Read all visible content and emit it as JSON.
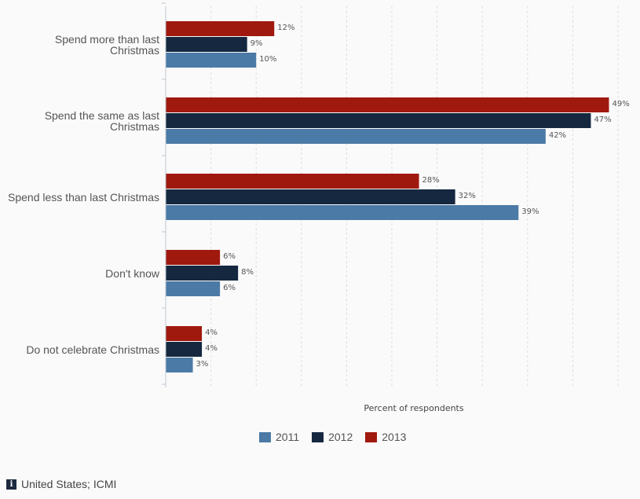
{
  "chart_data": {
    "type": "bar",
    "orientation": "horizontal",
    "categories": [
      [
        "Spend more than last",
        "Christmas"
      ],
      [
        "Spend the same as last",
        "Christmas"
      ],
      [
        "Spend less than last Christmas"
      ],
      [
        "Don't know"
      ],
      [
        "Do not celebrate Christmas"
      ]
    ],
    "series": [
      {
        "name": "2013",
        "color": "#a0190e",
        "values": [
          12,
          49,
          28,
          6,
          4
        ],
        "labels": [
          "12%",
          "49%",
          "28%",
          "6%",
          "4%"
        ]
      },
      {
        "name": "2012",
        "color": "#152840",
        "values": [
          9,
          47,
          32,
          8,
          4
        ],
        "labels": [
          "9%",
          "47%",
          "32%",
          "8%",
          "4%"
        ]
      },
      {
        "name": "2011",
        "color": "#4b7aa6",
        "values": [
          10,
          42,
          39,
          6,
          3
        ],
        "labels": [
          "10%",
          "42%",
          "39%",
          "6%",
          "3%"
        ]
      }
    ],
    "xlabel": "Percent of respondents",
    "xlim": [
      0,
      50
    ],
    "grid": true,
    "legend_position": "bottom",
    "legend_order": [
      "2011",
      "2012",
      "2013"
    ]
  },
  "legend": [
    {
      "label": "2011",
      "color": "#4b7aa6"
    },
    {
      "label": "2012",
      "color": "#152840"
    },
    {
      "label": "2013",
      "color": "#a0190e"
    }
  ],
  "footer": {
    "icon": "info-icon",
    "icon_glyph": "i",
    "source_text": "United States; ICMI"
  }
}
